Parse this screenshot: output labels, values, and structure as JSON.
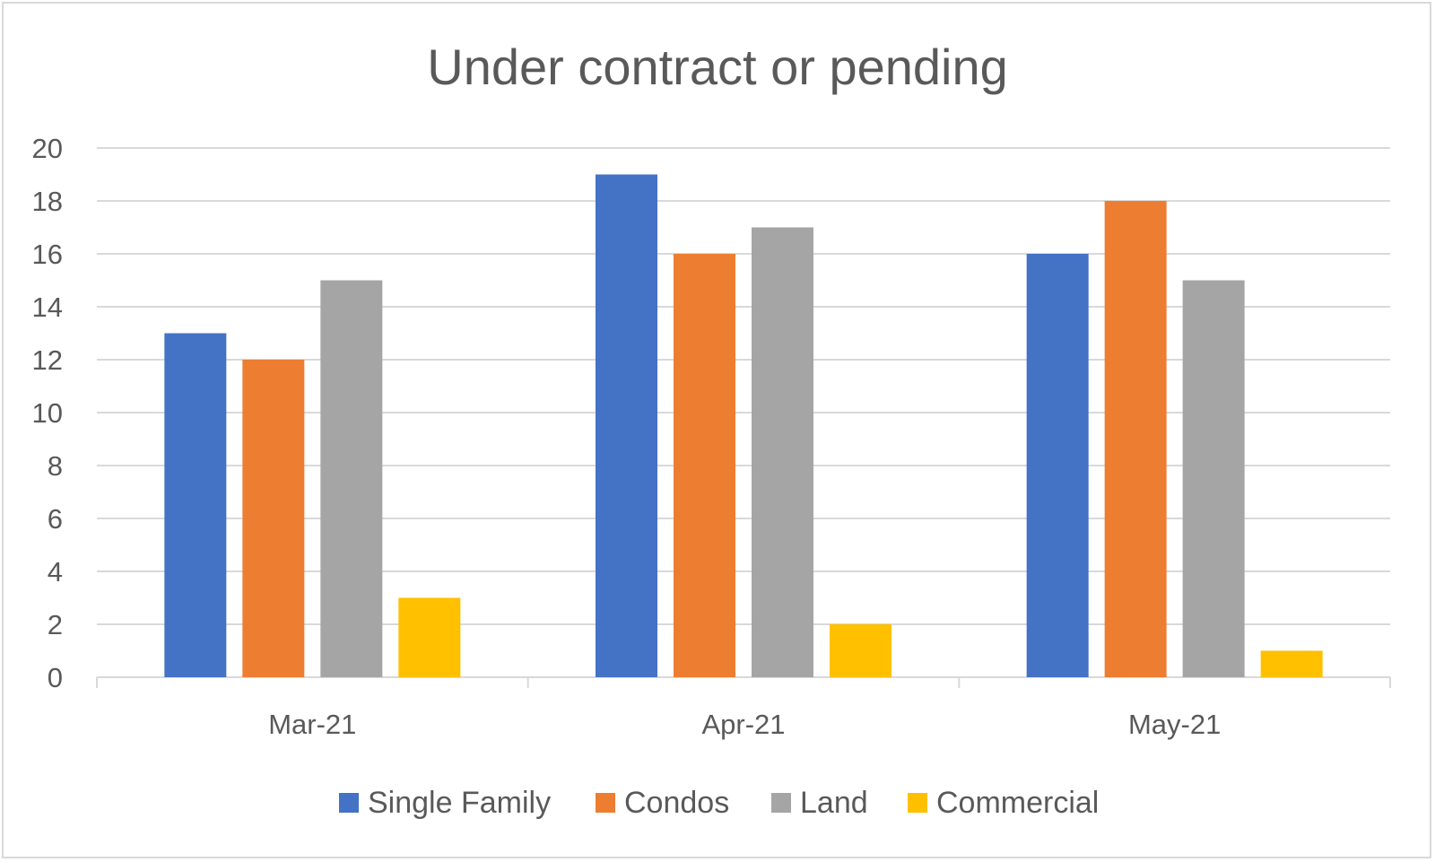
{
  "chart_data": {
    "type": "bar",
    "title": "Under contract or pending",
    "xlabel": "",
    "ylabel": "",
    "categories": [
      "Mar-21",
      "Apr-21",
      "May-21"
    ],
    "series": [
      {
        "name": "Single Family",
        "color": "#4472c4",
        "values": [
          13,
          19,
          16
        ]
      },
      {
        "name": "Condos",
        "color": "#ed7d31",
        "values": [
          12,
          16,
          18
        ]
      },
      {
        "name": "Land",
        "color": "#a5a5a5",
        "values": [
          15,
          17,
          15
        ]
      },
      {
        "name": "Commercial",
        "color": "#ffc000",
        "values": [
          3,
          2,
          1
        ]
      }
    ],
    "ylim": [
      0,
      20
    ],
    "yticks": [
      "0",
      "2",
      "4",
      "6",
      "8",
      "10",
      "12",
      "14",
      "16",
      "18",
      "20"
    ],
    "grid": true,
    "legend": "bottom"
  }
}
